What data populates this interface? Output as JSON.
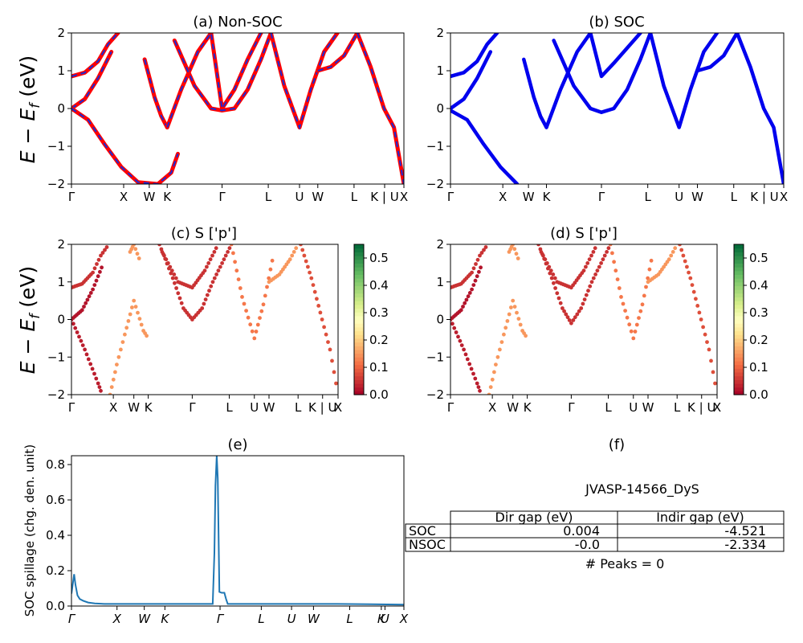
{
  "figure": {
    "label_big_ylabel": "E − E",
    "label_big_ylabel_sub": "f",
    "label_big_ylabel_unit": " (eV)"
  },
  "kpath_labels": [
    "Γ",
    "X",
    "W",
    "K",
    "Γ",
    "L",
    "U",
    "W",
    "L",
    "K | U",
    "X"
  ],
  "chart_data": [
    {
      "type": "line",
      "id": "a",
      "title": "(a) Non-SOC",
      "ylim": [
        -2,
        2
      ],
      "yticks": [
        -2,
        -1,
        0,
        1,
        2
      ],
      "xticks_labels": [
        "Γ",
        "X",
        "W",
        "K",
        "Γ",
        "L",
        "U",
        "W",
        "L",
        "K | U",
        "X"
      ],
      "xticks_pos": [
        0,
        0.157,
        0.234,
        0.288,
        0.453,
        0.592,
        0.686,
        0.741,
        0.85,
        0.942,
        1.0
      ],
      "series": [
        {
          "style": "red-solid-blue-dashed",
          "x": [
            0,
            0.04,
            0.08,
            0.11,
            0.14
          ],
          "y": [
            0.85,
            0.95,
            1.25,
            1.7,
            2.0
          ]
        },
        {
          "style": "red-solid-blue-dashed",
          "x": [
            0,
            0.04,
            0.08,
            0.12
          ],
          "y": [
            0.0,
            0.25,
            0.8,
            1.5
          ]
        },
        {
          "style": "red-solid-blue-dashed",
          "x": [
            0,
            0.05,
            0.1,
            0.15,
            0.2,
            0.26,
            0.3,
            0.32
          ],
          "y": [
            0.0,
            -0.3,
            -0.95,
            -1.55,
            -1.95,
            -2.0,
            -1.7,
            -1.2
          ]
        },
        {
          "style": "red-solid-blue-dashed",
          "x": [
            0.22,
            0.25,
            0.27,
            0.288
          ],
          "y": [
            1.3,
            0.3,
            -0.2,
            -0.5
          ]
        },
        {
          "style": "red-solid-blue-dashed",
          "x": [
            0.288,
            0.33,
            0.38,
            0.42,
            0.453,
            0.49,
            0.53,
            0.57
          ],
          "y": [
            -0.5,
            0.5,
            1.5,
            2.0,
            0,
            0.5,
            1.3,
            2.0
          ]
        },
        {
          "style": "red-solid-blue-dashed",
          "x": [
            0.31,
            0.37,
            0.42,
            0.453,
            0.49,
            0.53,
            0.57,
            0.6
          ],
          "y": [
            1.8,
            0.6,
            0.0,
            -0.05,
            0.0,
            0.5,
            1.3,
            2.0
          ]
        },
        {
          "style": "red-solid-blue-dashed",
          "x": [
            0.6,
            0.64,
            0.686,
            0.72,
            0.76,
            0.8
          ],
          "y": [
            2.0,
            0.6,
            -0.5,
            0.5,
            1.5,
            2.0
          ]
        },
        {
          "style": "red-solid-blue-dashed",
          "x": [
            0.741,
            0.78,
            0.82,
            0.86
          ],
          "y": [
            1.0,
            1.1,
            1.4,
            2.0
          ]
        },
        {
          "style": "red-solid-blue-dashed",
          "x": [
            0.86,
            0.9,
            0.94,
            0.97,
            1.0
          ],
          "y": [
            2.0,
            1.1,
            0.0,
            -0.5,
            -2.0
          ]
        }
      ]
    },
    {
      "type": "line",
      "id": "b",
      "title": "(b) SOC",
      "ylim": [
        -2,
        2
      ],
      "yticks": [
        -2,
        -1,
        0,
        1,
        2
      ],
      "xticks_labels": [
        "Γ",
        "X",
        "W",
        "K",
        "Γ",
        "L",
        "U",
        "W",
        "L",
        "K | U",
        "X"
      ],
      "xticks_pos": [
        0,
        0.157,
        0.234,
        0.288,
        0.453,
        0.592,
        0.686,
        0.741,
        0.85,
        0.942,
        1.0
      ],
      "series": [
        {
          "style": "blue",
          "x": [
            0,
            0.04,
            0.08,
            0.11,
            0.14
          ],
          "y": [
            0.85,
            0.95,
            1.25,
            1.7,
            2.0
          ]
        },
        {
          "style": "blue",
          "x": [
            0,
            0.04,
            0.08,
            0.12
          ],
          "y": [
            0.0,
            0.25,
            0.8,
            1.5
          ]
        },
        {
          "style": "blue",
          "x": [
            0,
            0.05,
            0.1,
            0.15,
            0.2
          ],
          "y": [
            -0.05,
            -0.3,
            -0.95,
            -1.55,
            -2.0
          ]
        },
        {
          "style": "blue",
          "x": [
            0.22,
            0.25,
            0.27,
            0.288
          ],
          "y": [
            1.3,
            0.3,
            -0.2,
            -0.5
          ]
        },
        {
          "style": "blue",
          "x": [
            0.288,
            0.33,
            0.38,
            0.42,
            0.453,
            0.49,
            0.53,
            0.57
          ],
          "y": [
            -0.5,
            0.5,
            1.5,
            2.0,
            0.85,
            1.2,
            1.6,
            2.0
          ]
        },
        {
          "style": "blue",
          "x": [
            0.31,
            0.37,
            0.42,
            0.453,
            0.49,
            0.53,
            0.57,
            0.6
          ],
          "y": [
            1.8,
            0.6,
            0.0,
            -0.1,
            0.0,
            0.5,
            1.3,
            2.0
          ]
        },
        {
          "style": "blue",
          "x": [
            0.6,
            0.64,
            0.686,
            0.72,
            0.76,
            0.8
          ],
          "y": [
            2.0,
            0.6,
            -0.5,
            0.5,
            1.5,
            2.0
          ]
        },
        {
          "style": "blue",
          "x": [
            0.741,
            0.78,
            0.82,
            0.86
          ],
          "y": [
            1.0,
            1.1,
            1.4,
            2.0
          ]
        },
        {
          "style": "blue",
          "x": [
            0.86,
            0.9,
            0.94,
            0.97,
            1.0
          ],
          "y": [
            2.0,
            1.1,
            0.0,
            -0.5,
            -2.0
          ]
        }
      ]
    },
    {
      "type": "scatter",
      "id": "c",
      "title": "(c)  S ['p']",
      "ylim": [
        -2,
        2
      ],
      "yticks": [
        -2,
        -1,
        0,
        1,
        2
      ],
      "colorbar": {
        "min": 0.0,
        "max": 0.55,
        "ticks": [
          0.0,
          0.1,
          0.2,
          0.3,
          0.4,
          0.5
        ],
        "colormap": "RdYlGn"
      },
      "xticks_labels": [
        "Γ",
        "X",
        "W",
        "K",
        "Γ",
        "L",
        "U",
        "W",
        "L",
        "K | U",
        "X"
      ],
      "xticks_pos": [
        0,
        0.157,
        0.234,
        0.288,
        0.453,
        0.592,
        0.686,
        0.741,
        0.85,
        0.942,
        1.0
      ],
      "bands": [
        {
          "c": 0.05,
          "x": [
            0,
            0.04,
            0.08,
            0.11,
            0.14
          ],
          "y": [
            0.85,
            0.95,
            1.25,
            1.7,
            2.0
          ]
        },
        {
          "c": 0.02,
          "x": [
            0,
            0.04,
            0.08,
            0.12
          ],
          "y": [
            0.0,
            0.25,
            0.8,
            1.5
          ]
        },
        {
          "c": 0.03,
          "x": [
            0,
            0.05,
            0.1,
            0.115
          ],
          "y": [
            0.0,
            -0.8,
            -1.7,
            -2.0
          ]
        },
        {
          "c": 0.15,
          "x": [
            0.145,
            0.17,
            0.2,
            0.234,
            0.27,
            0.288
          ],
          "y": [
            -2.0,
            -1.2,
            -0.4,
            0.5,
            -0.3,
            -0.5
          ]
        },
        {
          "c": 0.15,
          "x": [
            0.22,
            0.234,
            0.26
          ],
          "y": [
            1.8,
            2.0,
            1.5
          ]
        },
        {
          "c": 0.05,
          "x": [
            0.33,
            0.38,
            0.42,
            0.453,
            0.49,
            0.53,
            0.6
          ],
          "y": [
            2.0,
            1.1,
            0.3,
            0.0,
            0.3,
            1.0,
            2.0
          ]
        },
        {
          "c": 0.05,
          "x": [
            0.34,
            0.4,
            0.453,
            0.5,
            0.55
          ],
          "y": [
            1.8,
            1.0,
            0.85,
            1.3,
            2.0
          ]
        },
        {
          "c": 0.12,
          "x": [
            0.6,
            0.64,
            0.686,
            0.72,
            0.76
          ],
          "y": [
            2.0,
            0.6,
            -0.5,
            0.4,
            1.8
          ]
        },
        {
          "c": 0.15,
          "x": [
            0.741,
            0.78,
            0.82,
            0.85
          ],
          "y": [
            1.0,
            1.2,
            1.6,
            2.0
          ]
        },
        {
          "c": 0.08,
          "x": [
            0.86,
            0.9,
            0.94,
            0.97,
            1.0
          ],
          "y": [
            2.0,
            1.1,
            0.0,
            -0.8,
            -2.0
          ]
        }
      ]
    },
    {
      "type": "scatter",
      "id": "d",
      "title": "(d) S ['p']",
      "ylim": [
        -2,
        2
      ],
      "yticks": [
        -2,
        -1,
        0,
        1,
        2
      ],
      "colorbar": {
        "min": 0.0,
        "max": 0.55,
        "ticks": [
          0.0,
          0.1,
          0.2,
          0.3,
          0.4,
          0.5
        ],
        "colormap": "RdYlGn"
      },
      "xticks_labels": [
        "Γ",
        "X",
        "W",
        "K",
        "Γ",
        "L",
        "U",
        "W",
        "L",
        "K | U",
        "X"
      ],
      "xticks_pos": [
        0,
        0.157,
        0.234,
        0.288,
        0.453,
        0.592,
        0.686,
        0.741,
        0.85,
        0.942,
        1.0
      ],
      "bands": [
        {
          "c": 0.05,
          "x": [
            0,
            0.04,
            0.08,
            0.11,
            0.14
          ],
          "y": [
            0.85,
            0.95,
            1.25,
            1.7,
            2.0
          ]
        },
        {
          "c": 0.02,
          "x": [
            0,
            0.04,
            0.08,
            0.12
          ],
          "y": [
            0.0,
            0.25,
            0.8,
            1.5
          ]
        },
        {
          "c": 0.03,
          "x": [
            0,
            0.05,
            0.1,
            0.115
          ],
          "y": [
            0.0,
            -0.8,
            -1.7,
            -2.0
          ]
        },
        {
          "c": 0.15,
          "x": [
            0.145,
            0.17,
            0.2,
            0.234,
            0.27,
            0.288
          ],
          "y": [
            -2.0,
            -1.2,
            -0.4,
            0.5,
            -0.3,
            -0.5
          ]
        },
        {
          "c": 0.15,
          "x": [
            0.22,
            0.234,
            0.26
          ],
          "y": [
            1.8,
            2.0,
            1.5
          ]
        },
        {
          "c": 0.05,
          "x": [
            0.33,
            0.38,
            0.42,
            0.453,
            0.49,
            0.53,
            0.6
          ],
          "y": [
            2.0,
            1.1,
            0.3,
            -0.1,
            0.3,
            1.0,
            2.0
          ]
        },
        {
          "c": 0.05,
          "x": [
            0.34,
            0.4,
            0.453,
            0.5,
            0.55
          ],
          "y": [
            1.8,
            1.0,
            0.85,
            1.3,
            2.0
          ]
        },
        {
          "c": 0.12,
          "x": [
            0.6,
            0.64,
            0.686,
            0.72,
            0.76
          ],
          "y": [
            2.0,
            0.6,
            -0.5,
            0.4,
            1.8
          ]
        },
        {
          "c": 0.15,
          "x": [
            0.741,
            0.78,
            0.82,
            0.85
          ],
          "y": [
            1.0,
            1.2,
            1.6,
            2.0
          ]
        },
        {
          "c": 0.08,
          "x": [
            0.86,
            0.9,
            0.94,
            0.97,
            1.0
          ],
          "y": [
            2.0,
            1.1,
            0.0,
            -0.8,
            -2.0
          ]
        }
      ]
    },
    {
      "type": "line",
      "id": "e",
      "title": "(e)",
      "ylabel": "SOC spillage (chg. den. unit)",
      "ylim": [
        0.0,
        0.85
      ],
      "yticks": [
        0.0,
        0.2,
        0.4,
        0.6,
        0.8
      ],
      "xticks_labels": [
        "Γ",
        "X",
        "W",
        "K",
        "Γ",
        "L",
        "U",
        "W",
        "L",
        "K",
        "U",
        "X"
      ],
      "xticks_pos": [
        0,
        0.137,
        0.219,
        0.281,
        0.447,
        0.571,
        0.662,
        0.728,
        0.837,
        0.932,
        0.943,
        1.0
      ],
      "x": [
        0,
        0.008,
        0.012,
        0.018,
        0.025,
        0.035,
        0.05,
        0.07,
        0.1,
        0.2,
        0.3,
        0.4,
        0.425,
        0.43,
        0.433,
        0.437,
        0.44,
        0.445,
        0.452,
        0.46,
        0.465,
        0.47,
        0.5,
        0.6,
        0.7,
        0.8,
        0.9,
        1.0
      ],
      "y": [
        0.07,
        0.18,
        0.12,
        0.06,
        0.04,
        0.03,
        0.02,
        0.015,
        0.012,
        0.012,
        0.012,
        0.012,
        0.012,
        0.3,
        0.68,
        0.85,
        0.72,
        0.08,
        0.075,
        0.075,
        0.04,
        0.012,
        0.012,
        0.012,
        0.012,
        0.012,
        0.01,
        0.008
      ]
    }
  ],
  "panel_f": {
    "title": "(f)",
    "material": "JVASP-14566_DyS",
    "table": {
      "headers": [
        "Dir gap (eV)",
        "Indir gap (eV)"
      ],
      "rows": [
        {
          "label": "SOC",
          "dir": "0.004",
          "indir": "-4.521"
        },
        {
          "label": "NSOC",
          "dir": "-0.0",
          "indir": "-2.334"
        }
      ]
    },
    "peaks": "# Peaks = 0"
  }
}
